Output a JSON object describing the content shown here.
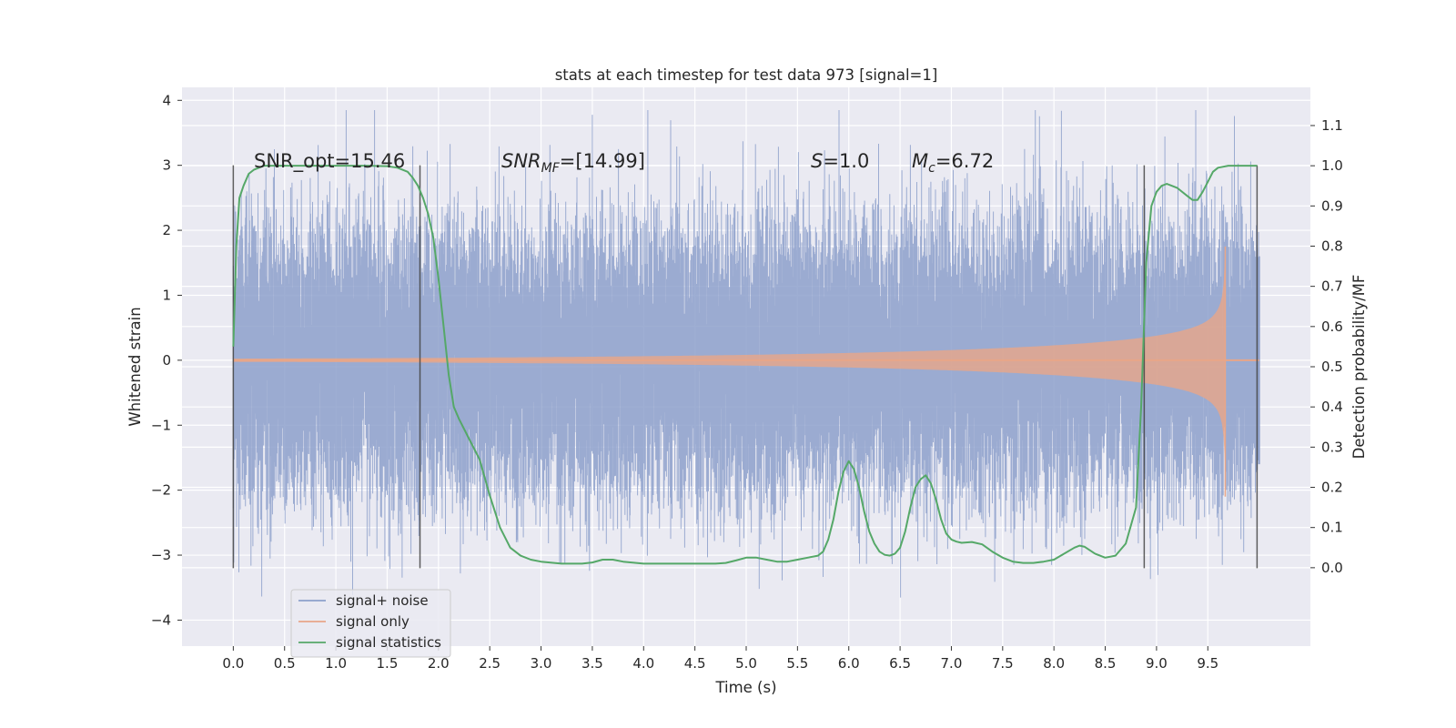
{
  "chart_data": {
    "type": "line",
    "title": "stats at each timestep for test data 973 [signal=1]",
    "xlabel": "Time (s)",
    "ylabel": "Whitened strain",
    "ylabel_right": "Detection probability/MF",
    "xlim": [
      -0.5,
      10.5
    ],
    "ylim": [
      -4.4,
      4.2
    ],
    "ylim_right": [
      -0.195,
      1.195
    ],
    "grid": true,
    "legend_position": "lower-left",
    "x_ticks": [
      "0.0",
      "0.5",
      "1.0",
      "1.5",
      "2.0",
      "2.5",
      "3.0",
      "3.5",
      "4.0",
      "4.5",
      "5.0",
      "5.5",
      "6.0",
      "6.5",
      "7.0",
      "7.5",
      "8.0",
      "8.5",
      "9.0",
      "9.5"
    ],
    "y_ticks": [
      "−4",
      "−3",
      "−2",
      "−1",
      "0",
      "1",
      "2",
      "3",
      "4"
    ],
    "y_ticks_right": [
      "0.0",
      "0.1",
      "0.2",
      "0.3",
      "0.4",
      "0.5",
      "0.6",
      "0.7",
      "0.8",
      "0.9",
      "1.0",
      "1.1"
    ],
    "annotations": {
      "snr_opt": "SNR_opt=15.46",
      "snr_mf_base": "SNR",
      "snr_mf_sub": "MF",
      "snr_mf_rest": "=[14.99]",
      "s_var": "S",
      "s_rest": "=1.0",
      "mc_base": "M",
      "mc_sub": "c",
      "mc_rest": "=6.72"
    },
    "detection_segments": [
      [
        0.0,
        1.82
      ],
      [
        8.88,
        9.98
      ]
    ],
    "series": [
      {
        "name": "signal+ noise",
        "color": "#8da0cb",
        "duration": 10.0,
        "typical_envelope": [
          -1.7,
          1.7
        ],
        "extremes": [
          -4.05,
          3.85
        ]
      },
      {
        "name": "signal only",
        "color": "#e8a688",
        "merger_time": 9.67,
        "amplitude_at_merger": 2.1,
        "amplitude_at_2s": 0.04,
        "amplitude_at_6s": 0.13,
        "amplitude_at_9s": 0.45
      },
      {
        "name": "signal statistics",
        "color": "#55a868",
        "x": [
          0.0,
          0.03,
          0.06,
          0.1,
          0.15,
          0.2,
          0.3,
          0.4,
          0.5,
          0.8,
          1.0,
          1.3,
          1.5,
          1.6,
          1.65,
          1.7,
          1.75,
          1.8,
          1.85,
          1.9,
          1.95,
          2.0,
          2.05,
          2.1,
          2.15,
          2.2,
          2.3,
          2.4,
          2.5,
          2.6,
          2.7,
          2.8,
          2.9,
          3.0,
          3.2,
          3.4,
          3.5,
          3.6,
          3.7,
          3.8,
          4.0,
          4.2,
          4.5,
          4.7,
          4.8,
          4.9,
          5.0,
          5.1,
          5.2,
          5.3,
          5.4,
          5.5,
          5.6,
          5.7,
          5.75,
          5.8,
          5.85,
          5.9,
          5.95,
          6.0,
          6.05,
          6.1,
          6.15,
          6.2,
          6.25,
          6.3,
          6.35,
          6.4,
          6.45,
          6.5,
          6.55,
          6.6,
          6.65,
          6.7,
          6.75,
          6.8,
          6.85,
          6.9,
          6.95,
          7.0,
          7.05,
          7.1,
          7.2,
          7.3,
          7.4,
          7.5,
          7.6,
          7.7,
          7.8,
          7.9,
          8.0,
          8.1,
          8.2,
          8.25,
          8.3,
          8.4,
          8.5,
          8.6,
          8.7,
          8.8,
          8.85,
          8.9,
          8.95,
          9.0,
          9.05,
          9.1,
          9.15,
          9.2,
          9.3,
          9.35,
          9.4,
          9.45,
          9.5,
          9.55,
          9.6,
          9.7,
          9.8,
          9.9,
          9.98
        ],
        "y": [
          0.55,
          0.8,
          0.92,
          0.95,
          0.98,
          0.99,
          1.0,
          1.0,
          1.0,
          1.0,
          1.0,
          1.0,
          0.999,
          0.995,
          0.99,
          0.985,
          0.97,
          0.95,
          0.92,
          0.88,
          0.82,
          0.72,
          0.6,
          0.48,
          0.4,
          0.37,
          0.32,
          0.27,
          0.18,
          0.1,
          0.05,
          0.03,
          0.02,
          0.015,
          0.01,
          0.01,
          0.013,
          0.02,
          0.02,
          0.015,
          0.01,
          0.01,
          0.01,
          0.01,
          0.012,
          0.018,
          0.025,
          0.025,
          0.02,
          0.015,
          0.015,
          0.02,
          0.025,
          0.03,
          0.04,
          0.07,
          0.12,
          0.19,
          0.24,
          0.265,
          0.245,
          0.2,
          0.14,
          0.09,
          0.06,
          0.04,
          0.032,
          0.03,
          0.035,
          0.05,
          0.09,
          0.15,
          0.2,
          0.22,
          0.23,
          0.21,
          0.17,
          0.12,
          0.085,
          0.07,
          0.065,
          0.062,
          0.064,
          0.058,
          0.04,
          0.025,
          0.015,
          0.012,
          0.012,
          0.015,
          0.02,
          0.035,
          0.05,
          0.055,
          0.052,
          0.035,
          0.025,
          0.03,
          0.06,
          0.15,
          0.4,
          0.76,
          0.9,
          0.935,
          0.95,
          0.955,
          0.95,
          0.945,
          0.925,
          0.915,
          0.915,
          0.935,
          0.96,
          0.985,
          0.995,
          1.0,
          1.0,
          1.0,
          1.0
        ]
      }
    ]
  }
}
